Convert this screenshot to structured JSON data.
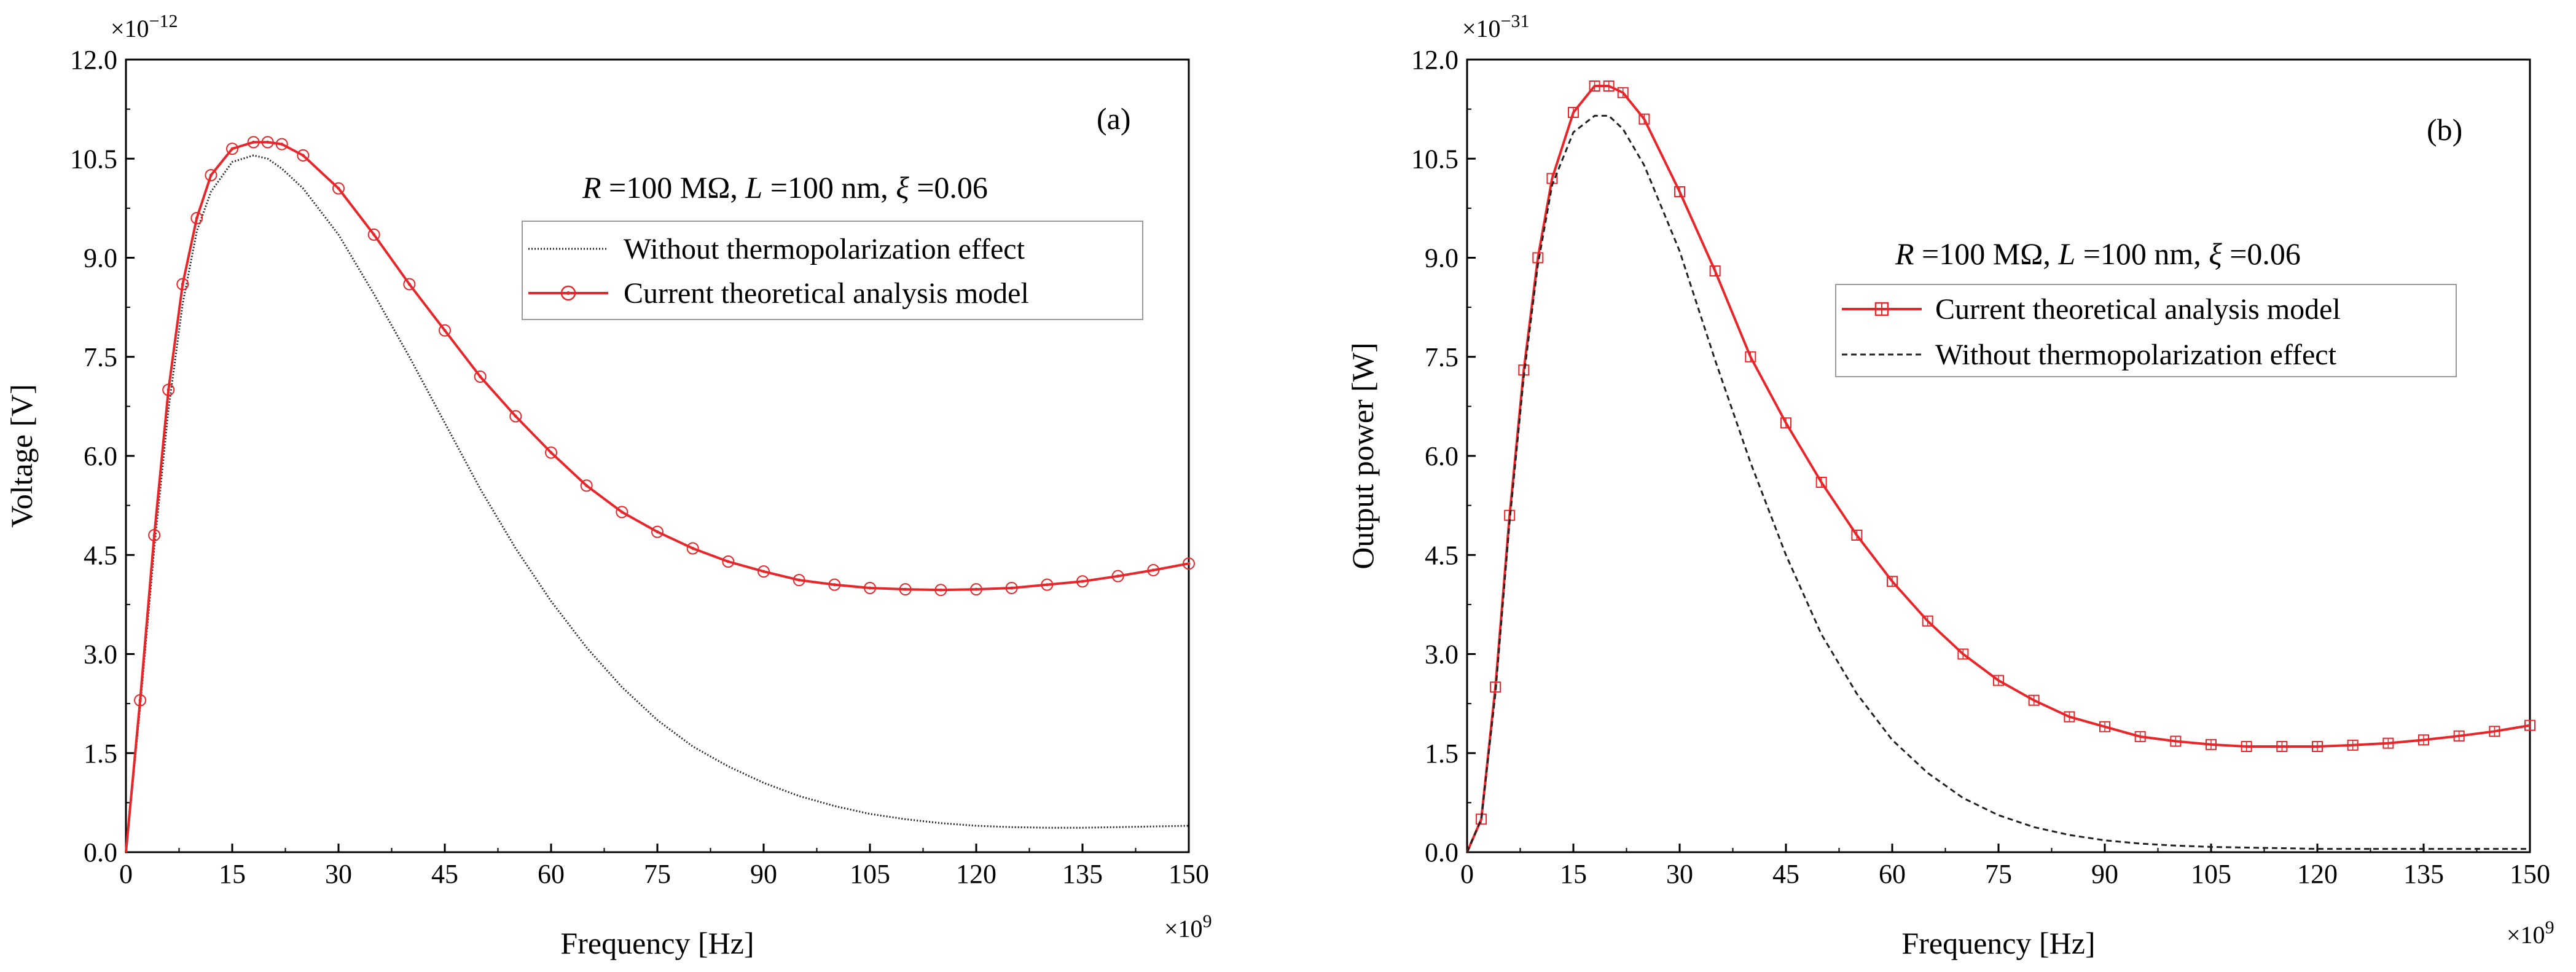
{
  "colors": {
    "model": "#e8262a",
    "baseline": "#222222",
    "axis": "#000000"
  },
  "chart_data": [
    {
      "type": "line",
      "panel_label": "(a)",
      "xlabel": "Frequency [Hz]",
      "ylabel": "Voltage [V]",
      "x_multiplier": "×10",
      "x_exponent": "9",
      "y_multiplier": "×10",
      "y_exponent": "−12",
      "xlim": [
        0,
        150
      ],
      "ylim": [
        0,
        12
      ],
      "xticks": [
        "0",
        "15",
        "30",
        "45",
        "60",
        "75",
        "90",
        "105",
        "120",
        "135",
        "150"
      ],
      "yticks": [
        "0.0",
        "1.5",
        "3.0",
        "4.5",
        "6.0",
        "7.5",
        "9.0",
        "10.5",
        "12.0"
      ],
      "params": {
        "r_sym": "R",
        "r_val": " =100 MΩ, ",
        "l_sym": "L",
        "l_val": " =100 nm, ",
        "xi_sym": "ξ",
        "xi_val": " =0.06"
      },
      "legend": [
        "Without thermopolarization effect",
        "Current theoretical analysis model"
      ],
      "series": [
        {
          "name": "Without thermopolarization effect",
          "style": "dotted",
          "x": [
            0,
            2,
            4,
            6,
            8,
            10,
            12,
            15,
            18,
            20,
            22,
            25,
            30,
            35,
            40,
            45,
            50,
            55,
            60,
            65,
            70,
            75,
            80,
            85,
            90,
            95,
            100,
            105,
            110,
            115,
            120,
            125,
            130,
            135,
            140,
            145,
            150
          ],
          "y": [
            0,
            2.2,
            4.6,
            6.7,
            8.3,
            9.4,
            10.0,
            10.45,
            10.55,
            10.5,
            10.35,
            10.05,
            9.35,
            8.45,
            7.5,
            6.5,
            5.5,
            4.6,
            3.8,
            3.1,
            2.5,
            2.0,
            1.6,
            1.3,
            1.05,
            0.85,
            0.7,
            0.58,
            0.5,
            0.44,
            0.4,
            0.38,
            0.37,
            0.37,
            0.38,
            0.39,
            0.4
          ]
        },
        {
          "name": "Current theoretical analysis model",
          "style": "solid-circle",
          "x": [
            0,
            2,
            4,
            6,
            8,
            10,
            12,
            15,
            18,
            20,
            22,
            25,
            30,
            35,
            40,
            45,
            50,
            55,
            60,
            65,
            70,
            75,
            80,
            85,
            90,
            95,
            100,
            105,
            110,
            115,
            120,
            125,
            130,
            135,
            140,
            145,
            150
          ],
          "y": [
            0,
            2.3,
            4.8,
            7.0,
            8.6,
            9.6,
            10.25,
            10.65,
            10.75,
            10.75,
            10.72,
            10.55,
            10.05,
            9.35,
            8.6,
            7.9,
            7.2,
            6.6,
            6.05,
            5.55,
            5.15,
            4.85,
            4.6,
            4.4,
            4.25,
            4.12,
            4.05,
            4.0,
            3.98,
            3.97,
            3.98,
            4.0,
            4.05,
            4.1,
            4.18,
            4.27,
            4.37
          ]
        }
      ]
    },
    {
      "type": "line",
      "panel_label": "(b)",
      "xlabel": "Frequency [Hz]",
      "ylabel": "Output power [W]",
      "x_multiplier": "×10",
      "x_exponent": "9",
      "y_multiplier": "×10",
      "y_exponent": "−31",
      "xlim": [
        0,
        150
      ],
      "ylim": [
        0,
        12
      ],
      "xticks": [
        "0",
        "15",
        "30",
        "45",
        "60",
        "75",
        "90",
        "105",
        "120",
        "135",
        "150"
      ],
      "yticks": [
        "0.0",
        "1.5",
        "3.0",
        "4.5",
        "6.0",
        "7.5",
        "9.0",
        "10.5",
        "12.0"
      ],
      "params": {
        "r_sym": "R",
        "r_val": " =100 MΩ, ",
        "l_sym": "L",
        "l_val": " =100 nm, ",
        "xi_sym": "ξ",
        "xi_val": " =0.06"
      },
      "legend": [
        "Current theoretical analysis model",
        "Without thermopolarization effect"
      ],
      "series": [
        {
          "name": "Current theoretical analysis model",
          "style": "solid-square",
          "x": [
            0,
            2,
            4,
            6,
            8,
            10,
            12,
            15,
            18,
            20,
            22,
            25,
            30,
            35,
            40,
            45,
            50,
            55,
            60,
            65,
            70,
            75,
            80,
            85,
            90,
            95,
            100,
            105,
            110,
            115,
            120,
            125,
            130,
            135,
            140,
            145,
            150
          ],
          "y": [
            0,
            0.5,
            2.5,
            5.1,
            7.3,
            9.0,
            10.2,
            11.2,
            11.6,
            11.6,
            11.5,
            11.1,
            10.0,
            8.8,
            7.5,
            6.5,
            5.6,
            4.8,
            4.1,
            3.5,
            3.0,
            2.6,
            2.3,
            2.05,
            1.9,
            1.75,
            1.68,
            1.63,
            1.6,
            1.6,
            1.6,
            1.62,
            1.65,
            1.7,
            1.76,
            1.83,
            1.92
          ]
        },
        {
          "name": "Without thermopolarization effect",
          "style": "dashed",
          "x": [
            0,
            2,
            4,
            6,
            8,
            10,
            12,
            15,
            18,
            20,
            22,
            25,
            30,
            35,
            40,
            45,
            50,
            55,
            60,
            65,
            70,
            75,
            80,
            85,
            90,
            95,
            100,
            105,
            110,
            115,
            120,
            125,
            130,
            135,
            140,
            145,
            150
          ],
          "y": [
            0,
            0.5,
            2.4,
            5.0,
            7.2,
            8.9,
            10.1,
            10.9,
            11.15,
            11.15,
            10.95,
            10.4,
            9.1,
            7.45,
            5.9,
            4.5,
            3.3,
            2.4,
            1.7,
            1.2,
            0.82,
            0.56,
            0.38,
            0.26,
            0.18,
            0.13,
            0.1,
            0.08,
            0.07,
            0.06,
            0.05,
            0.05,
            0.05,
            0.05,
            0.05,
            0.05,
            0.05
          ]
        }
      ]
    }
  ]
}
